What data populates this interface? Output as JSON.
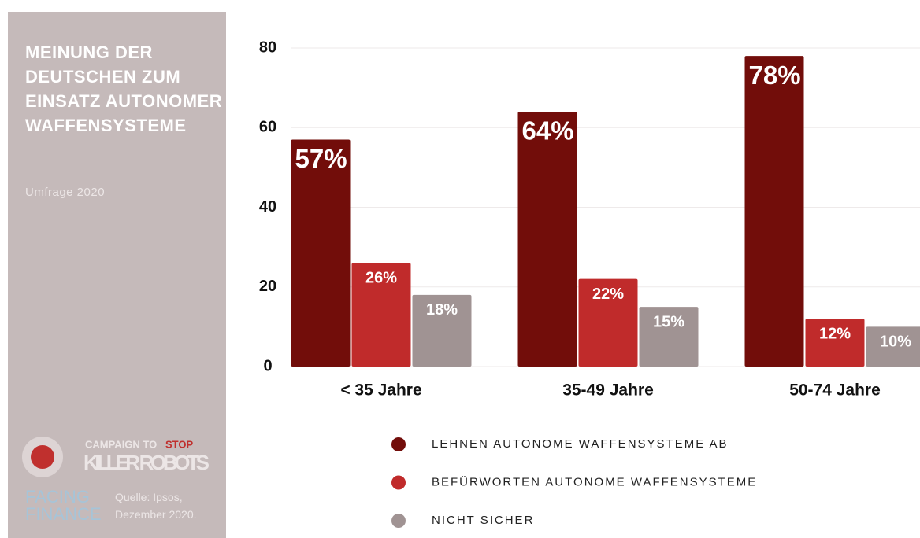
{
  "chart_data": {
    "type": "bar",
    "title": "MEINUNG DER DEUTSCHEN ZUM EINSATZ AUTONOMER WAFFENSYSTEME",
    "subtitle": "Umfrage 2020",
    "categories": [
      "< 35 Jahre",
      "35-49 Jahre",
      "50-74 Jahre"
    ],
    "series": [
      {
        "name": "LEHNEN AUTONOME WAFFENSYSTEME AB",
        "color": "#720d0a",
        "values": [
          57,
          64,
          78
        ],
        "value_labels": [
          "57%",
          "64%",
          "78%"
        ]
      },
      {
        "name": "BEFÜRWORTEN AUTONOME WAFFENSYSTEME",
        "color": "#c02b2b",
        "values": [
          26,
          22,
          12
        ],
        "value_labels": [
          "26%",
          "22%",
          "12%"
        ]
      },
      {
        "name": "NICHT SICHER",
        "color": "#a09393",
        "values": [
          18,
          15,
          10
        ],
        "value_labels": [
          "18%",
          "15%",
          "10%"
        ]
      }
    ],
    "ylim": [
      0,
      80
    ],
    "yticks": [
      0,
      20,
      40,
      60,
      80
    ],
    "grid": true
  },
  "logos": {
    "campaign_top": "CAMPAIGN TO",
    "campaign_stop": "STOP",
    "campaign_bottom": "KILLER ROBOTS",
    "facing": "FACING",
    "finance": "FINANCE"
  },
  "source": "Quelle: Ipsos, Dezember 2020."
}
